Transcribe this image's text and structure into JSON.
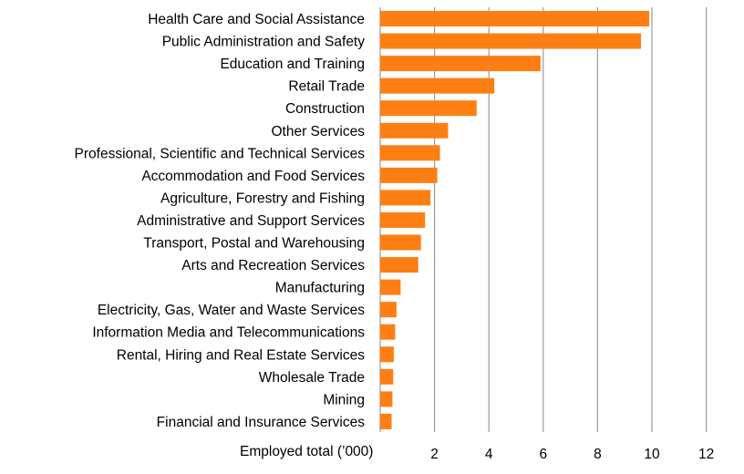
{
  "chart_data": {
    "type": "bar",
    "orientation": "horizontal",
    "categories": [
      "Health Care and Social Assistance",
      "Public Administration and Safety",
      "Education and Training",
      "Retail Trade",
      "Construction",
      "Other Services",
      "Professional, Scientific and Technical Services",
      "Accommodation and Food Services",
      "Agriculture, Forestry and Fishing",
      "Administrative and Support Services",
      "Transport, Postal and Warehousing",
      "Arts and Recreation Services",
      "Manufacturing",
      "Electricity, Gas, Water and Waste Services",
      "Information Media and Telecommunications",
      "Rental, Hiring and Real Estate Services",
      "Wholesale Trade",
      "Mining",
      "Financial and Insurance Services"
    ],
    "values": [
      9.9,
      9.6,
      5.9,
      4.2,
      3.55,
      2.5,
      2.2,
      2.1,
      1.85,
      1.65,
      1.5,
      1.4,
      0.75,
      0.6,
      0.55,
      0.5,
      0.48,
      0.45,
      0.42
    ],
    "xlabel": "Employed total (’000)",
    "ticks": [
      2,
      4,
      6,
      8,
      10,
      12
    ],
    "xlim": [
      0,
      12
    ],
    "grid": true,
    "bar_color": "#fd7f13"
  }
}
